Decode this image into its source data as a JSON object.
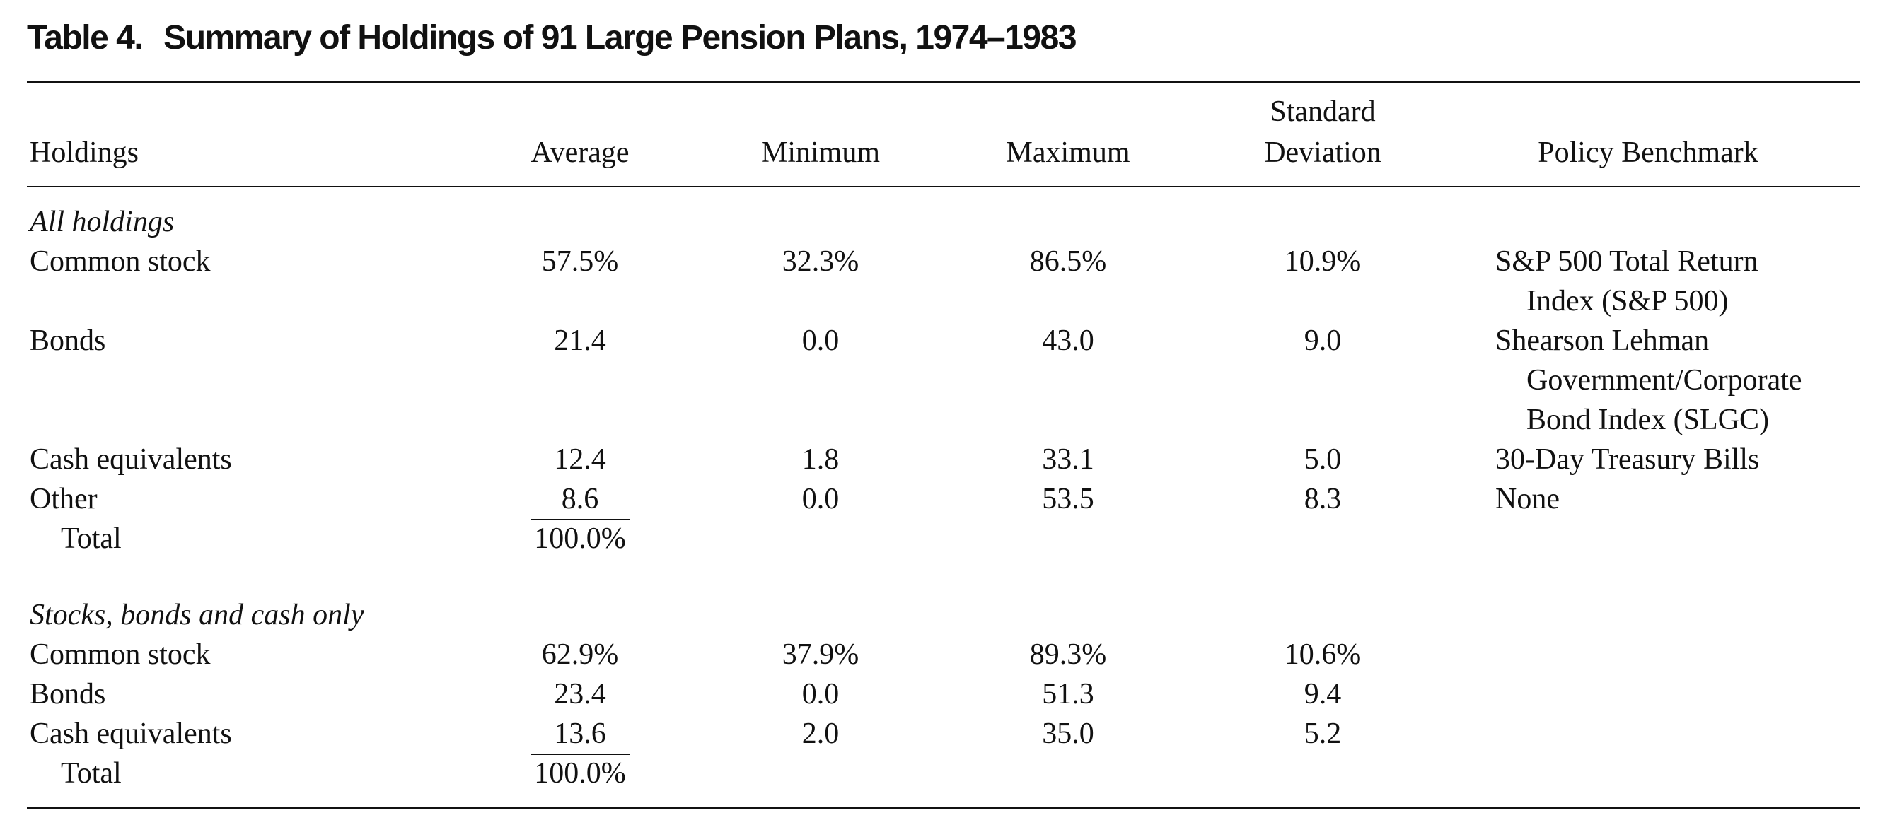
{
  "table": {
    "number_label": "Table 4.",
    "title": "Summary of Holdings of 91 Large Pension Plans, 1974–1983",
    "headers": {
      "holdings": "Holdings",
      "average": "Average",
      "minimum": "Minimum",
      "maximum": "Maximum",
      "std_line1": "Standard",
      "std_line2": "Deviation",
      "benchmark": "Policy Benchmark"
    },
    "sections": [
      {
        "heading": "All holdings",
        "rows": [
          {
            "label": "Common stock",
            "average": "57.5%",
            "minimum": "32.3%",
            "maximum": "86.5%",
            "std": "10.9%",
            "benchmark": [
              "S&P 500 Total Return",
              "Index (S&P 500)"
            ]
          },
          {
            "label": "Bonds",
            "average": "21.4",
            "minimum": "0.0",
            "maximum": "43.0",
            "std": "9.0",
            "benchmark": [
              "Shearson Lehman",
              "Government/Corporate",
              "Bond Index (SLGC)"
            ]
          },
          {
            "label": "Cash equivalents",
            "average": "12.4",
            "minimum": "1.8",
            "maximum": "33.1",
            "std": "5.0",
            "benchmark": [
              "30-Day Treasury Bills"
            ]
          },
          {
            "label": "Other",
            "average": "8.6",
            "minimum": "0.0",
            "maximum": "53.5",
            "std": "8.3",
            "benchmark": [
              "None"
            ]
          }
        ],
        "total_label": "Total",
        "total_value": "100.0%"
      },
      {
        "heading": "Stocks, bonds and cash only",
        "rows": [
          {
            "label": "Common stock",
            "average": "62.9%",
            "minimum": "37.9%",
            "maximum": "89.3%",
            "std": "10.6%"
          },
          {
            "label": "Bonds",
            "average": "23.4",
            "minimum": "0.0",
            "maximum": "51.3",
            "std": "9.4"
          },
          {
            "label": "Cash equivalents",
            "average": "13.6",
            "minimum": "2.0",
            "maximum": "35.0",
            "std": "5.2"
          }
        ],
        "total_label": "Total",
        "total_value": "100.0%"
      }
    ]
  }
}
